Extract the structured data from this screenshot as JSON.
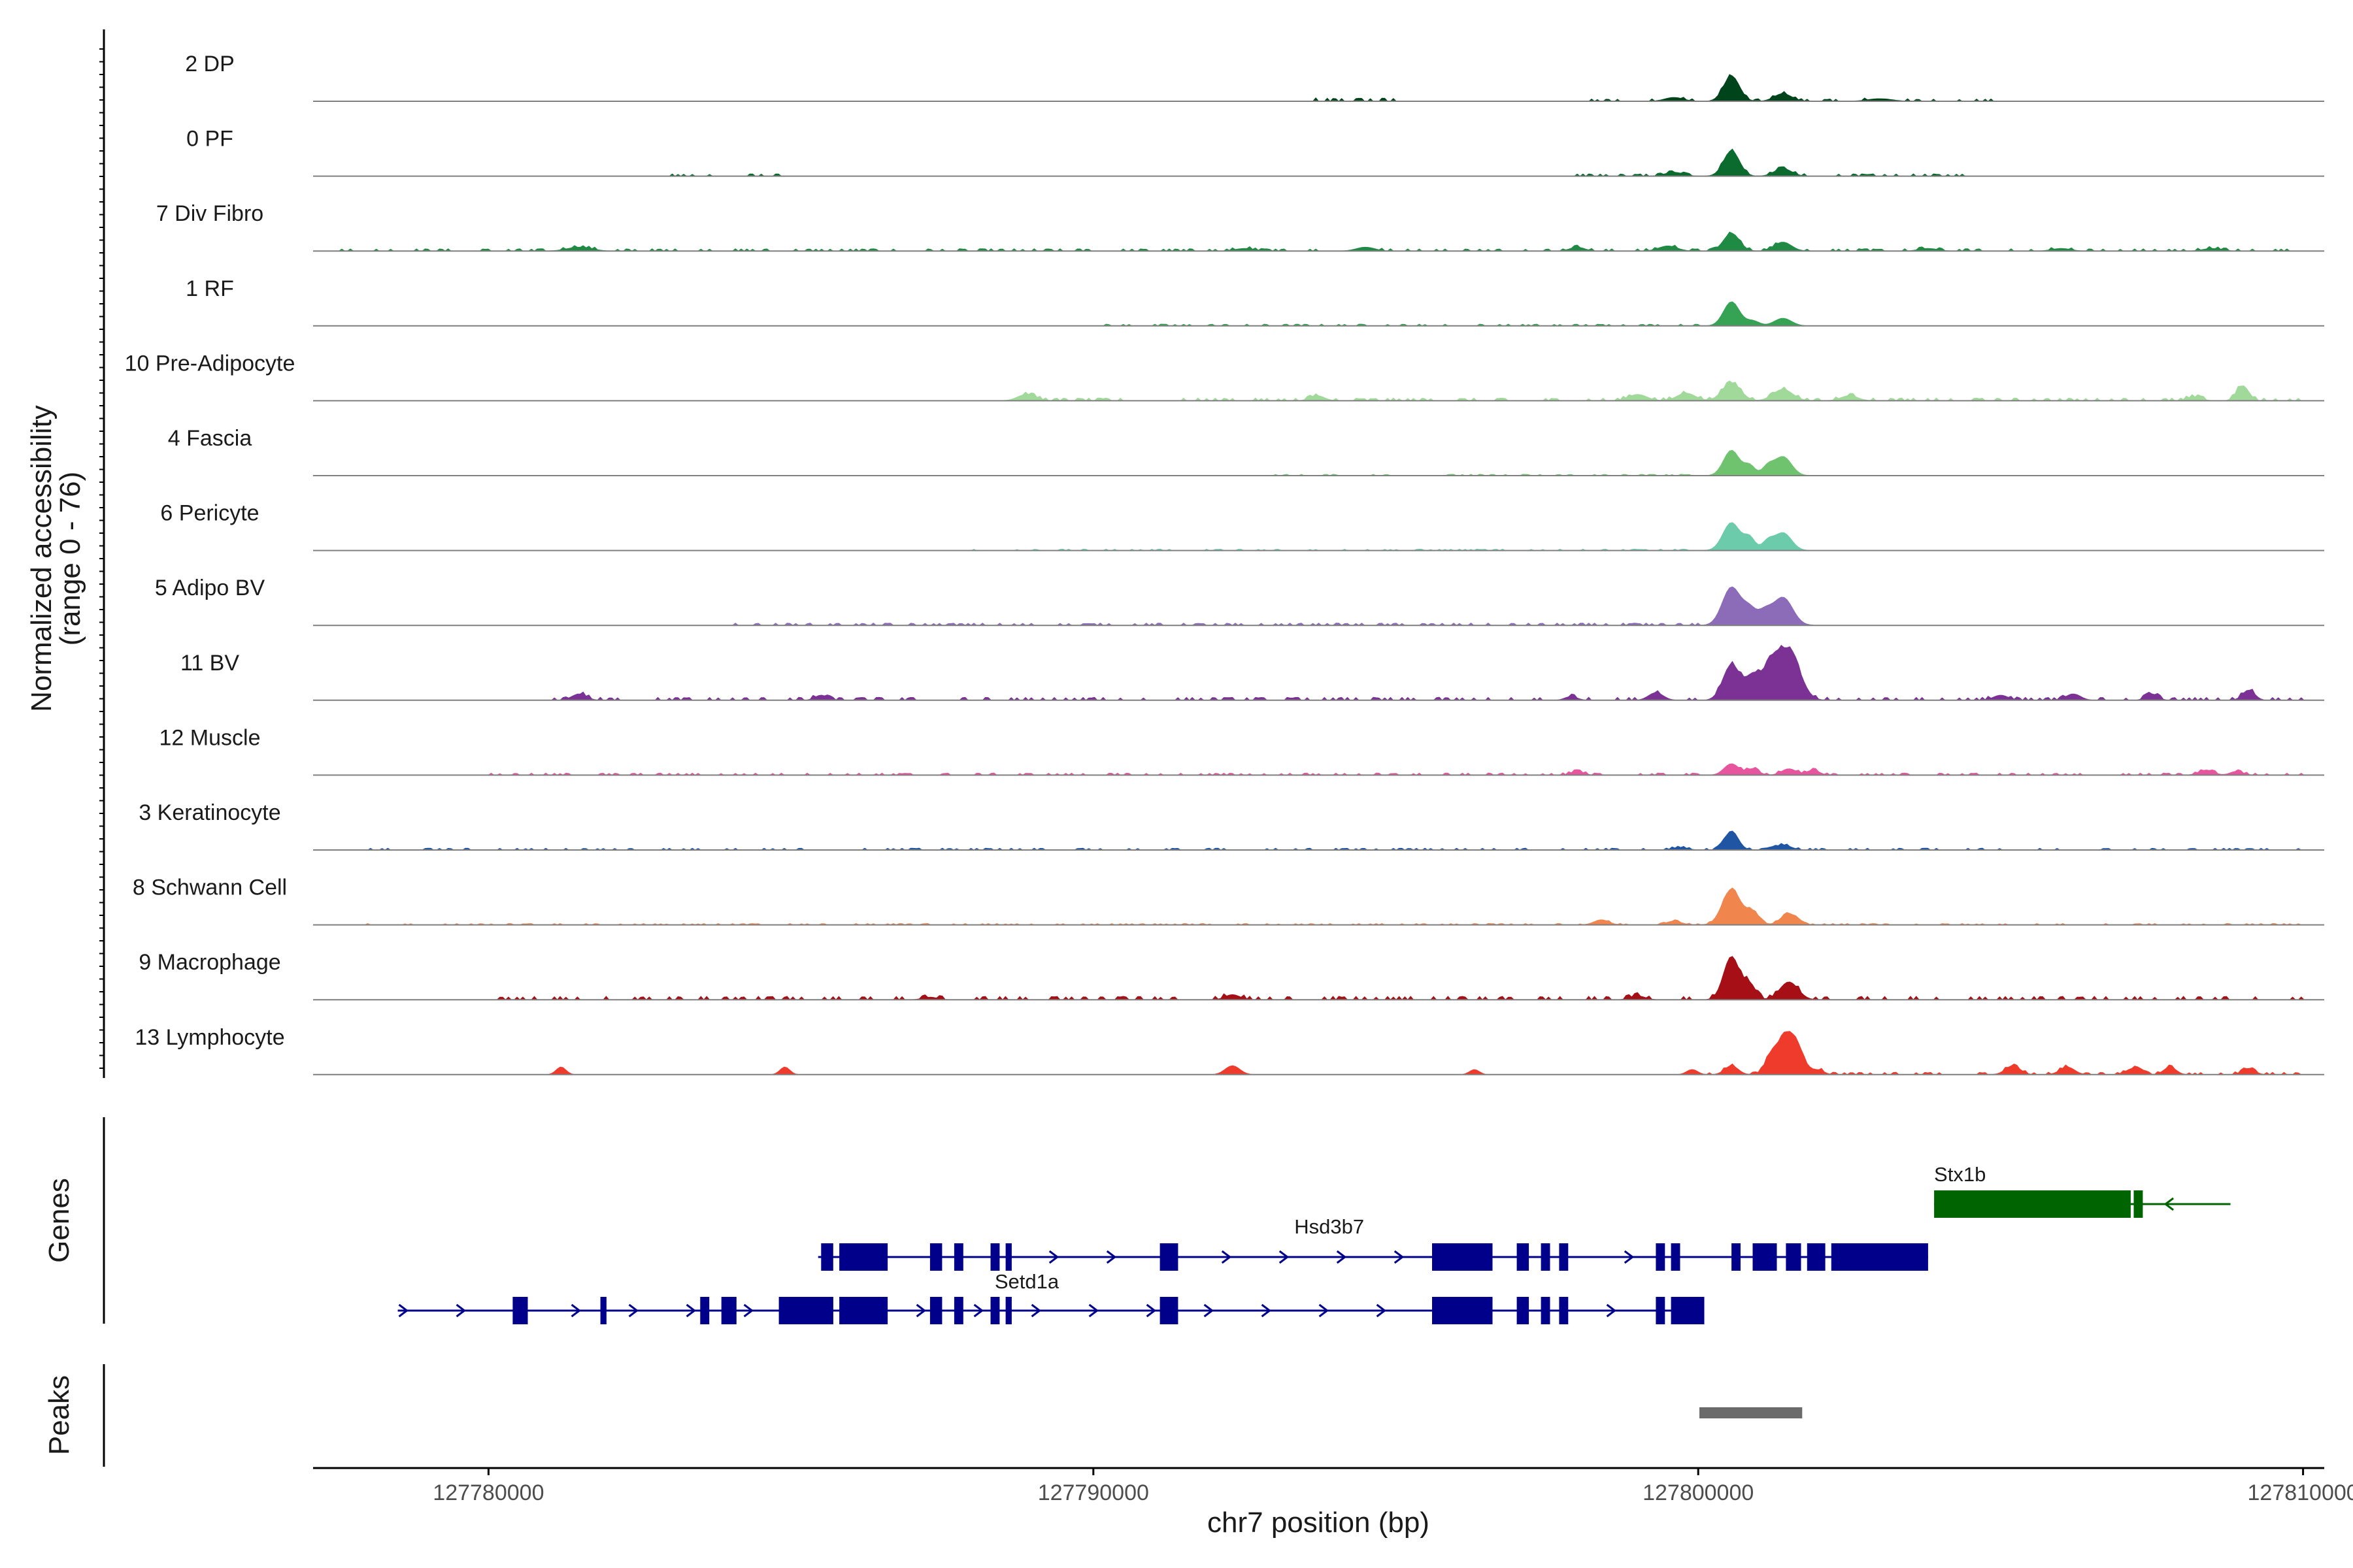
{
  "chart_data": {
    "type": "area",
    "title": "",
    "ylabel_line1": "Normalized accessibility",
    "ylabel_line2": "(range 0 - 76)",
    "y_range": [
      0,
      76
    ],
    "xlabel": "chr7 position (bp)",
    "xlim": [
      127777100,
      127810350
    ],
    "xticks": [
      127780000,
      127790000,
      127800000,
      127810000
    ],
    "xtick_labels": [
      "127780000",
      "127790000",
      "127800000",
      "127810000"
    ],
    "genes_label": "Genes",
    "peaks_label": "Peaks",
    "tracks": [
      {
        "name": "2 DP",
        "color": "#00441b",
        "peaks": [
          [
            127800550,
            20,
            130
          ],
          [
            127801400,
            6,
            140
          ],
          [
            127799600,
            3,
            150
          ],
          [
            127803000,
            2,
            200
          ]
        ],
        "noise": [
          [
            127793500,
            127795000,
            1.5
          ],
          [
            127798000,
            127805000,
            1
          ]
        ]
      },
      {
        "name": "0 PF",
        "color": "#0b6b2f",
        "peaks": [
          [
            127800550,
            20,
            130
          ],
          [
            127801400,
            6,
            140
          ],
          [
            127799600,
            3,
            150
          ]
        ],
        "noise": [
          [
            127783000,
            127785000,
            1
          ],
          [
            127798000,
            127805000,
            1
          ]
        ]
      },
      {
        "name": "7 Div Fibro",
        "color": "#1f8a43",
        "peaks": [
          [
            127800550,
            14,
            130
          ],
          [
            127801400,
            7,
            140
          ],
          [
            127799500,
            4,
            150
          ],
          [
            127798000,
            3,
            120
          ],
          [
            127794500,
            3,
            150
          ],
          [
            127792500,
            2,
            150
          ],
          [
            127781500,
            3,
            200
          ],
          [
            127803800,
            2,
            150
          ],
          [
            127806000,
            2,
            150
          ],
          [
            127808500,
            2,
            150
          ]
        ],
        "noise": [
          [
            127777500,
            127810000,
            1
          ]
        ]
      },
      {
        "name": "1 RF",
        "color": "#35a254",
        "peaks": [
          [
            127800550,
            19,
            130
          ],
          [
            127801400,
            6,
            140
          ],
          [
            127800900,
            4,
            110
          ]
        ],
        "noise": [
          [
            127790000,
            127800000,
            0.8
          ]
        ]
      },
      {
        "name": "10 Pre-Adipocyte",
        "color": "#a1d99b",
        "peaks": [
          [
            127800550,
            14,
            150
          ],
          [
            127801400,
            9,
            160
          ],
          [
            127799800,
            6,
            150
          ],
          [
            127799000,
            5,
            150
          ],
          [
            127802500,
            4,
            140
          ],
          [
            127809000,
            12,
            100
          ],
          [
            127788900,
            5,
            150
          ],
          [
            127793700,
            4,
            120
          ],
          [
            127808200,
            3,
            120
          ]
        ],
        "noise": [
          [
            127788000,
            127810000,
            1.2
          ]
        ]
      },
      {
        "name": "4 Fascia",
        "color": "#6fc36f",
        "peaks": [
          [
            127800550,
            20,
            130
          ],
          [
            127800850,
            8,
            90
          ],
          [
            127801400,
            15,
            140
          ],
          [
            127801150,
            7,
            90
          ]
        ],
        "noise": [
          [
            127793000,
            127800000,
            0.6
          ]
        ]
      },
      {
        "name": "6 Pericyte",
        "color": "#6ccbaa",
        "peaks": [
          [
            127800550,
            22,
            140
          ],
          [
            127800850,
            10,
            90
          ],
          [
            127801400,
            14,
            140
          ],
          [
            127801150,
            7,
            90
          ]
        ],
        "noise": [
          [
            127788000,
            127800000,
            0.6
          ]
        ]
      },
      {
        "name": "5 Adipo BV",
        "color": "#8c6bb8",
        "peaks": [
          [
            127800550,
            30,
            150
          ],
          [
            127800850,
            12,
            110
          ],
          [
            127801400,
            22,
            160
          ],
          [
            127801100,
            10,
            110
          ]
        ],
        "noise": [
          [
            127784000,
            127800000,
            1
          ]
        ]
      },
      {
        "name": "11 BV",
        "color": "#7b3294",
        "peaks": [
          [
            127800550,
            28,
            140
          ],
          [
            127800900,
            18,
            120
          ],
          [
            127801500,
            38,
            180
          ],
          [
            127801200,
            24,
            140
          ],
          [
            127799300,
            6,
            120
          ],
          [
            127781500,
            5,
            120
          ],
          [
            127785500,
            4,
            100
          ],
          [
            127805000,
            4,
            120
          ],
          [
            127806200,
            5,
            120
          ],
          [
            127807500,
            5,
            100
          ],
          [
            127809100,
            8,
            100
          ],
          [
            127797900,
            3,
            100
          ]
        ],
        "noise": [
          [
            127781000,
            127810000,
            1.3
          ]
        ]
      },
      {
        "name": "12 Muscle",
        "color": "#e7559e",
        "peaks": [
          [
            127800550,
            9,
            120
          ],
          [
            127800900,
            5,
            100
          ],
          [
            127801500,
            5,
            120
          ],
          [
            127801900,
            4,
            100
          ],
          [
            127798000,
            3,
            100
          ],
          [
            127808400,
            4,
            120
          ],
          [
            127808900,
            3,
            100
          ]
        ],
        "noise": [
          [
            127780000,
            127810000,
            0.9
          ]
        ]
      },
      {
        "name": "3 Keratinocyte",
        "color": "#1f55a3",
        "peaks": [
          [
            127800550,
            15,
            110
          ],
          [
            127801400,
            4,
            130
          ],
          [
            127799700,
            2,
            120
          ]
        ],
        "noise": [
          [
            127778000,
            127810000,
            0.8
          ]
        ]
      },
      {
        "name": "8 Schwann Cell",
        "color": "#f0854e",
        "peaks": [
          [
            127800550,
            28,
            150
          ],
          [
            127800900,
            10,
            110
          ],
          [
            127801500,
            9,
            130
          ],
          [
            127798400,
            4,
            120
          ],
          [
            127799600,
            3,
            120
          ]
        ],
        "noise": [
          [
            127778000,
            127810000,
            0.6
          ]
        ]
      },
      {
        "name": "9 Macrophage",
        "color": "#a50f15",
        "peaks": [
          [
            127800550,
            34,
            130
          ],
          [
            127800850,
            12,
            100
          ],
          [
            127801500,
            14,
            150
          ],
          [
            127792300,
            4,
            120
          ],
          [
            127799000,
            3,
            120
          ],
          [
            127787300,
            2,
            120
          ]
        ],
        "noise": [
          [
            127780000,
            127810000,
            1.5
          ]
        ]
      },
      {
        "name": "13 Lymphocyte",
        "color": "#ef3b2c",
        "peaks": [
          [
            127801500,
            34,
            180
          ],
          [
            127801200,
            10,
            100
          ],
          [
            127800550,
            7,
            110
          ],
          [
            127781200,
            6,
            80
          ],
          [
            127784900,
            6,
            80
          ],
          [
            127792300,
            7,
            120
          ],
          [
            127796300,
            4,
            80
          ],
          [
            127805200,
            7,
            120
          ],
          [
            127806100,
            6,
            120
          ],
          [
            127807200,
            5,
            120
          ],
          [
            127807800,
            6,
            100
          ],
          [
            127809100,
            5,
            100
          ],
          [
            127799900,
            4,
            90
          ],
          [
            127802000,
            3,
            90
          ]
        ],
        "noise": [
          [
            127800000,
            127810000,
            1
          ]
        ]
      }
    ],
    "genes": [
      {
        "name": "Stx1b",
        "color": "#006400",
        "strand": "-",
        "row": 0,
        "line": [
          127803900,
          127808800
        ],
        "exons": [
          [
            127803900,
            127807150
          ],
          [
            127807200,
            127807350
          ]
        ]
      },
      {
        "name": "Hsd3b7",
        "color": "#00008b",
        "strand": "+",
        "row": 1,
        "line": [
          127785450,
          127803800
        ],
        "exons": [
          [
            127785500,
            127785700
          ],
          [
            127785800,
            127786600
          ],
          [
            127787300,
            127787500
          ],
          [
            127787700,
            127787850
          ],
          [
            127788300,
            127788450
          ],
          [
            127788550,
            127788650
          ],
          [
            127791100,
            127791400
          ],
          [
            127795600,
            127796600
          ],
          [
            127797000,
            127797200
          ],
          [
            127797400,
            127797550
          ],
          [
            127797700,
            127797850
          ],
          [
            127799300,
            127799450
          ],
          [
            127799550,
            127799700
          ],
          [
            127800550,
            127800700
          ],
          [
            127800900,
            127801300
          ],
          [
            127801450,
            127801700
          ],
          [
            127801800,
            127802100
          ],
          [
            127802200,
            127803800
          ]
        ]
      },
      {
        "name": "Setd1a",
        "color": "#00008b",
        "strand": "+",
        "row": 2,
        "line": [
          127778500,
          127800100
        ],
        "exons": [
          [
            127780400,
            127780650
          ],
          [
            127781850,
            127781950
          ],
          [
            127783500,
            127783650
          ],
          [
            127783850,
            127784100
          ],
          [
            127784800,
            127785700
          ],
          [
            127785800,
            127786600
          ],
          [
            127787300,
            127787500
          ],
          [
            127787700,
            127787850
          ],
          [
            127788300,
            127788450
          ],
          [
            127788550,
            127788650
          ],
          [
            127791100,
            127791400
          ],
          [
            127795600,
            127796600
          ],
          [
            127797000,
            127797200
          ],
          [
            127797400,
            127797550
          ],
          [
            127797700,
            127797850
          ],
          [
            127799300,
            127799450
          ],
          [
            127799550,
            127800100
          ]
        ]
      }
    ],
    "peaks": [
      [
        127800020,
        127801720
      ]
    ]
  }
}
